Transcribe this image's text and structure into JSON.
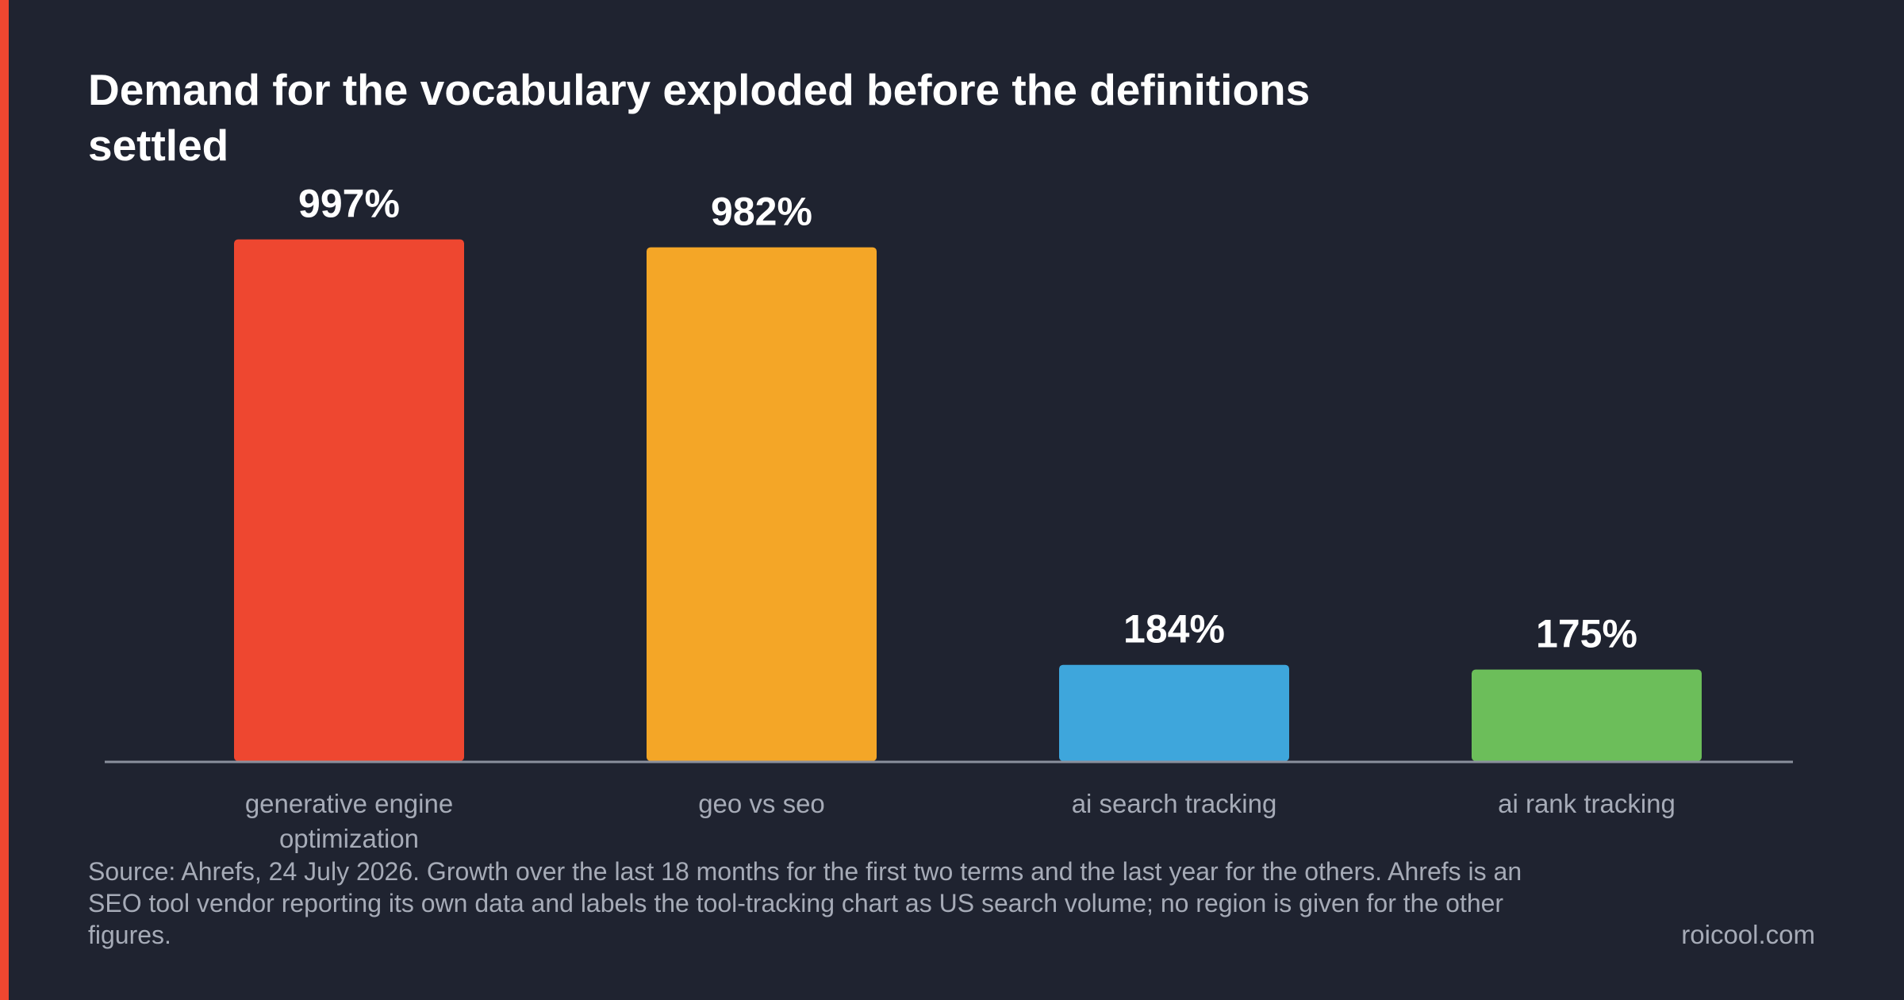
{
  "theme": {
    "background": "#1f2330",
    "accent": "#ee4730",
    "axis_color": "#8a8f9c",
    "label_color": "#a6abb7",
    "value_label_color": "#ffffff"
  },
  "chart_data": {
    "type": "bar",
    "title": "Demand for the vocabulary exploded before the definitions settled",
    "categories": [
      "generative engine optimization",
      "geo vs seo",
      "ai search tracking",
      "ai rank tracking"
    ],
    "values": [
      997,
      982,
      184,
      175
    ],
    "value_labels": [
      "997%",
      "982%",
      "184%",
      "175%"
    ],
    "unit": "%",
    "colors": [
      "#ee4730",
      "#f4a627",
      "#3ea6dc",
      "#6cbe5a"
    ],
    "ylim": [
      0,
      1000
    ],
    "grid": false,
    "legend": "none"
  },
  "footer": {
    "source": "Source: Ahrefs, 24 July 2026. Growth over the last 18 months for the first two terms and the last year for the others. Ahrefs is an SEO tool vendor reporting its own data and labels the tool-tracking chart as US search volume; no region is given for the other figures.",
    "site": "roicool.com"
  }
}
